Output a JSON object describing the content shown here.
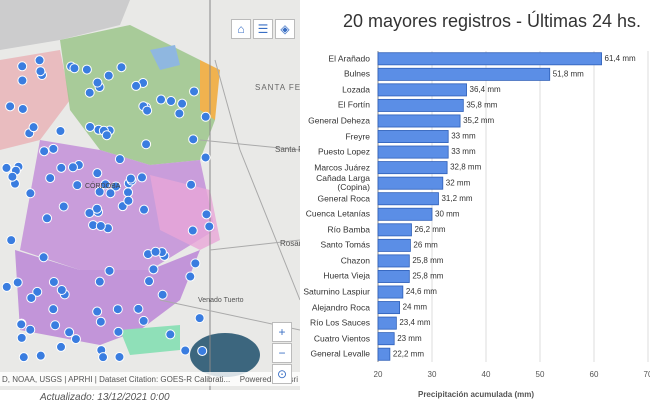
{
  "map": {
    "labels": [
      "SANTA FE",
      "Santa Fe",
      "Rosario",
      "Venado Tuerto",
      "CÓRDOBA"
    ],
    "attribution": "D, NOAA, USGS | APRHI | Dataset Citation: GOES-R Calibrati...",
    "powered": "Powered by Esri",
    "updated": "Actualizado: 13/12/2021 0:00"
  },
  "chart_data": {
    "type": "hbar",
    "title": "20 mayores registros - Últimas 24 hs.",
    "x_label": "Precipitación acumulada (mm)",
    "categories": [
      "El Arañado",
      "Bulnes",
      "Lozada",
      "El Fortín",
      "General Deheza",
      "Freyre",
      "Puesto Lopez",
      "Marcos Juárez",
      "Cañada Larga (Copina)",
      "General Roca",
      "Cuenca Letanías",
      "Río Bamba",
      "Santo Tomás",
      "Chazon",
      "Huerta Vieja",
      "Saturnino Laspiur",
      "Alejandro Roca",
      "Río Los Sauces",
      "Cuatro Vientos",
      "General Levalle"
    ],
    "values": [
      61.4,
      51.8,
      36.4,
      35.8,
      35.2,
      33,
      33,
      32.8,
      32,
      31.2,
      30,
      26.2,
      26,
      25.8,
      25.8,
      24.6,
      24,
      23.4,
      23,
      22.2
    ],
    "value_labels": [
      "61,4 mm",
      "51,8 mm",
      "36,4 mm",
      "35,8 mm",
      "35,2 mm",
      "33 mm",
      "33 mm",
      "32,8 mm",
      "32 mm",
      "31,2 mm",
      "30 mm",
      "26,2 mm",
      "26 mm",
      "25,8 mm",
      "25,8 mm",
      "24,6 mm",
      "24 mm",
      "23,4 mm",
      "23 mm",
      "22,2 mm"
    ],
    "color": "#5b8ee6",
    "xlim": [
      20,
      70
    ],
    "xticks": [
      20,
      30,
      40,
      50,
      60,
      70
    ],
    "grid": true
  }
}
